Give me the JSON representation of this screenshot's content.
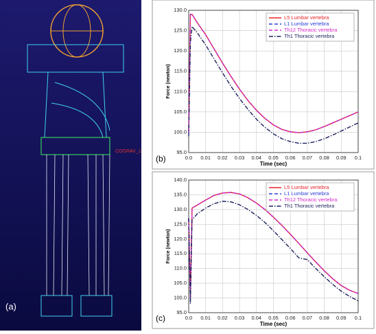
{
  "figure_a": {
    "label": "(a)",
    "annotation": "COGRAV_1"
  },
  "chart_data": [
    {
      "type": "line",
      "panel_label": "(b)",
      "x_label": "Time (sec)",
      "y_label": "Force (newton)",
      "grid": true,
      "legend": "upper right",
      "x": [
        0,
        0.001,
        0.002,
        0.005,
        0.01,
        0.015,
        0.02,
        0.025,
        0.03,
        0.035,
        0.04,
        0.045,
        0.05,
        0.055,
        0.06,
        0.065,
        0.07,
        0.075,
        0.08,
        0.085,
        0.09,
        0.095,
        0.1
      ],
      "xlim": [
        0,
        0.1
      ],
      "ylim": [
        95,
        130
      ],
      "xticks": [
        {
          "value": 0,
          "label": "0.0"
        },
        0.01,
        0.02,
        0.03,
        0.04,
        0.05,
        0.06,
        0.07,
        0.08,
        0.09,
        0.1
      ],
      "yticks": [
        {
          "value": 95,
          "label": "95.0"
        },
        {
          "value": 100,
          "label": "100.0"
        },
        {
          "value": 105,
          "label": "105.0"
        },
        {
          "value": 110,
          "label": "110.0"
        },
        {
          "value": 115,
          "label": "115.0"
        },
        {
          "value": 120,
          "label": "120.0"
        },
        {
          "value": 125,
          "label": "125.0"
        },
        {
          "value": 130,
          "label": "130.0"
        }
      ],
      "series": [
        {
          "name": "L5 Lumbar vertebra",
          "color": "#e8232a",
          "line_style": "solid",
          "values": [
            100,
            129,
            129,
            127,
            124,
            120.5,
            117,
            113.7,
            110.6,
            107.8,
            105.4,
            103.4,
            101.8,
            100.7,
            100.1,
            99.9,
            100.1,
            100.6,
            101.4,
            102.3,
            103.2,
            104.1,
            105
          ]
        },
        {
          "name": "L1 Lumbar vertebra",
          "color": "#2a3fd6",
          "line_style": "dashed",
          "values": [
            100,
            129,
            129,
            127,
            124,
            120.5,
            117,
            113.7,
            110.6,
            107.8,
            105.4,
            103.4,
            101.8,
            100.7,
            100.1,
            99.9,
            100.1,
            100.6,
            101.4,
            102.3,
            103.2,
            104.1,
            105
          ]
        },
        {
          "name": "Th12 Thoracic vertebra",
          "color": "#d62ac8",
          "line_style": "dashed",
          "values": [
            100,
            129,
            129,
            127,
            124,
            120.5,
            117,
            113.7,
            110.6,
            107.8,
            105.4,
            103.4,
            101.8,
            100.7,
            100.1,
            99.9,
            100.1,
            100.6,
            101.4,
            102.3,
            103.2,
            104.1,
            105
          ]
        },
        {
          "name": "Th1 Thoracic vertebra",
          "color": "#1a1f5c",
          "line_style": "dashdot",
          "values": [
            99,
            122,
            126,
            124.5,
            121.5,
            118,
            114.6,
            111.3,
            108.3,
            105.6,
            103.2,
            101.2,
            99.6,
            98.4,
            97.7,
            97.3,
            97.3,
            97.7,
            98.4,
            99.3,
            100.3,
            101.3,
            102.3
          ]
        }
      ]
    },
    {
      "type": "line",
      "panel_label": "(c)",
      "x_label": "Time (sec)",
      "y_label": "Force (newton)",
      "grid": true,
      "legend": "upper right",
      "x": [
        0,
        0.001,
        0.002,
        0.005,
        0.01,
        0.015,
        0.02,
        0.025,
        0.03,
        0.035,
        0.04,
        0.045,
        0.05,
        0.055,
        0.06,
        0.065,
        0.07,
        0.075,
        0.08,
        0.085,
        0.09,
        0.095,
        0.1
      ],
      "xlim": [
        0,
        0.1
      ],
      "ylim": [
        95,
        140
      ],
      "xticks": [
        {
          "value": 0,
          "label": "0.0"
        },
        0.01,
        0.02,
        0.03,
        0.04,
        0.05,
        0.06,
        0.07,
        0.08,
        0.09,
        0.1
      ],
      "yticks": [
        {
          "value": 95,
          "label": "95.0"
        },
        {
          "value": 100,
          "label": "100.0"
        },
        {
          "value": 105,
          "label": "105.0"
        },
        {
          "value": 110,
          "label": "110.0"
        },
        {
          "value": 115,
          "label": "115.0"
        },
        {
          "value": 120,
          "label": "120.0"
        },
        {
          "value": 125,
          "label": "125.0"
        },
        {
          "value": 130,
          "label": "130.0"
        },
        {
          "value": 135,
          "label": "135.0"
        },
        {
          "value": 140,
          "label": "140.0"
        }
      ],
      "series": [
        {
          "name": "L5 Lumbar vertebra",
          "color": "#e8232a",
          "line_style": "solid",
          "values": [
            127,
            100,
            130.5,
            131.5,
            133.2,
            134.8,
            135.6,
            135.8,
            135.3,
            134,
            132.2,
            130,
            127.4,
            124.6,
            121.6,
            118.5,
            115.3,
            112.2,
            109.2,
            106.5,
            104.2,
            102.6,
            101.5
          ]
        },
        {
          "name": "L1 Lumbar vertebra",
          "color": "#2a3fd6",
          "line_style": "dashed",
          "values": [
            127,
            100,
            130.5,
            131.5,
            133.2,
            134.8,
            135.6,
            135.8,
            135.3,
            134,
            132.2,
            130,
            127.4,
            124.6,
            121.6,
            118.5,
            115.3,
            112.2,
            109.2,
            106.5,
            104.2,
            102.6,
            101.5
          ]
        },
        {
          "name": "Th12 Thoracic vertebra",
          "color": "#d62ac8",
          "line_style": "dashed",
          "values": [
            127,
            100,
            130.5,
            131.5,
            133.2,
            134.8,
            135.6,
            135.8,
            135.3,
            134,
            132.2,
            130,
            127.4,
            124.6,
            121.6,
            118.5,
            115.3,
            112.2,
            109.2,
            106.5,
            104.2,
            102.6,
            101.5
          ]
        },
        {
          "name": "Th1 Thoracic vertebra",
          "color": "#1a1f5c",
          "line_style": "dashdot",
          "values": [
            127,
            98,
            126.5,
            128.5,
            130.5,
            132,
            132.8,
            132.6,
            131.6,
            130,
            128,
            125.6,
            122.8,
            119.8,
            116.8,
            113.6,
            113,
            110,
            107.2,
            104.6,
            102.3,
            100.5,
            99
          ]
        }
      ]
    }
  ]
}
